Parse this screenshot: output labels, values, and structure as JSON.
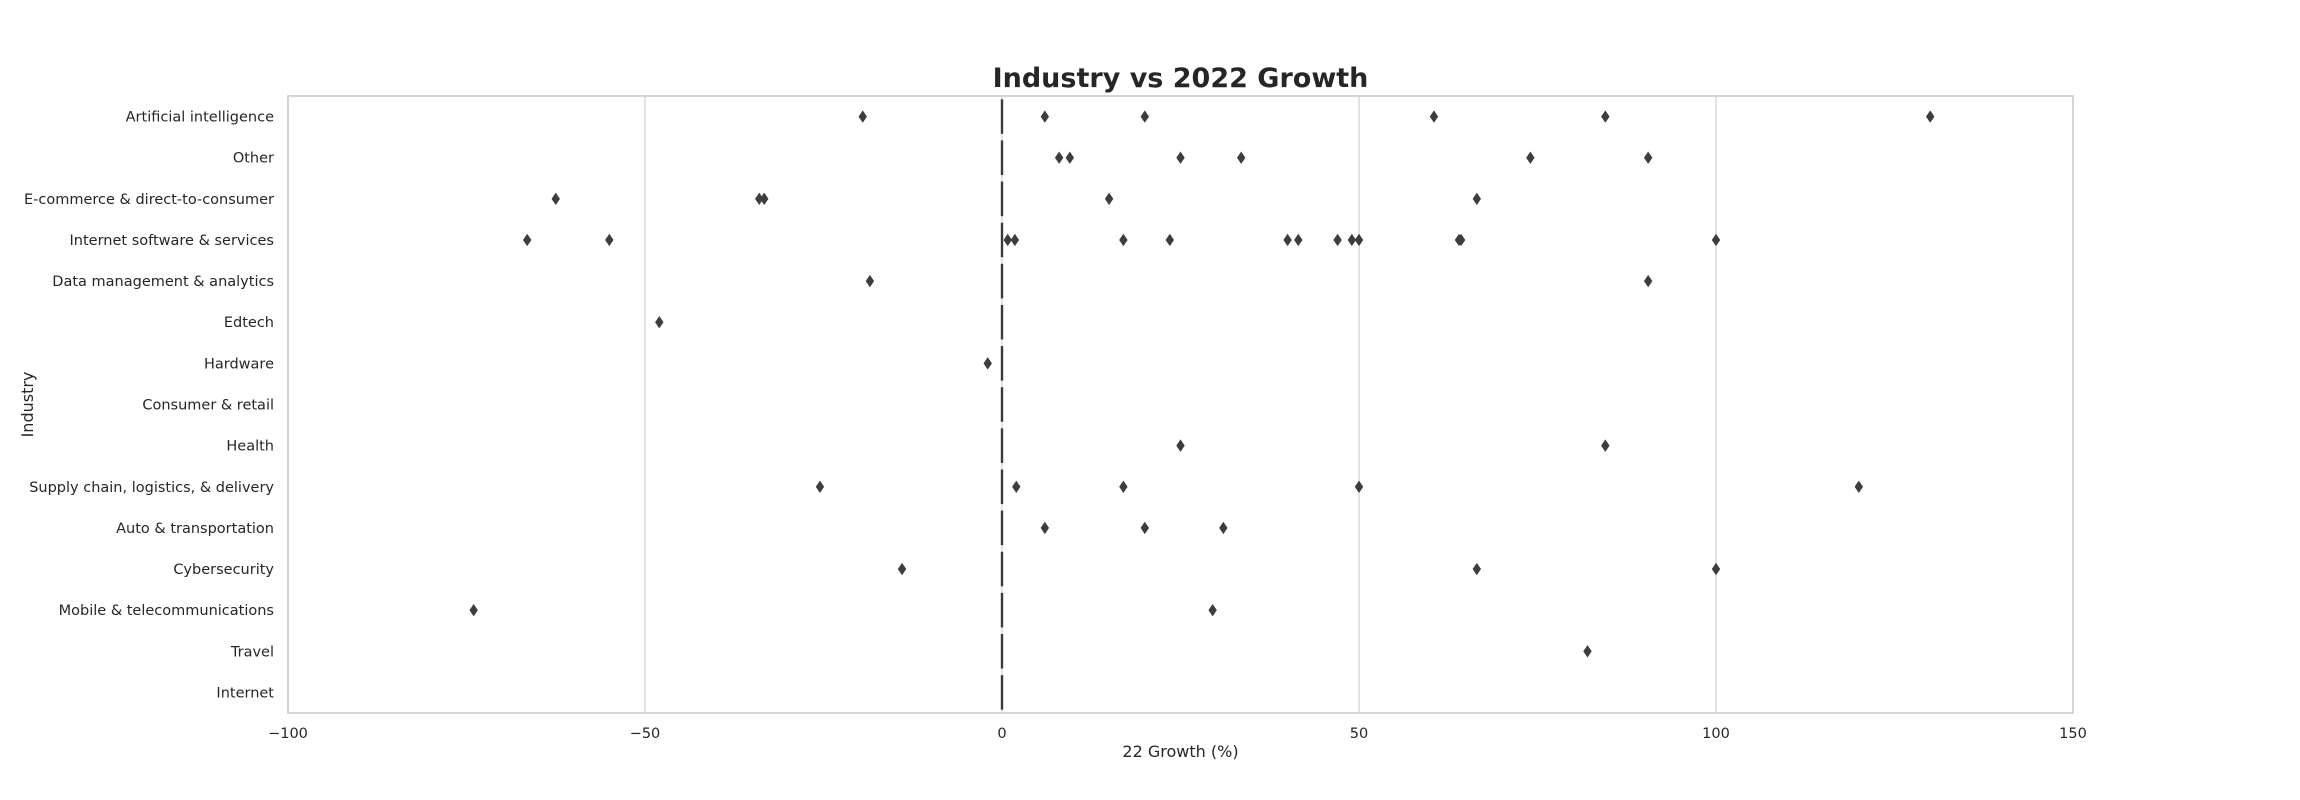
{
  "chart_data": {
    "type": "scatter",
    "title": "Industry vs 2022 Growth",
    "xlabel": "22 Growth (%)",
    "ylabel": "Industry",
    "xlim": [
      -100,
      150
    ],
    "xticks": [
      -100,
      -50,
      0,
      50,
      100,
      150
    ],
    "xtick_labels": [
      "−100",
      "−50",
      "0",
      "50",
      "100",
      "150"
    ],
    "grid": "vertical",
    "categories": [
      "Artificial intelligence",
      "Other",
      "E-commerce & direct-to-consumer",
      "Internet software & services",
      "Data management & analytics",
      "Edtech",
      "Hardware",
      "Consumer & retail",
      "Health",
      "Supply chain, logistics, & delivery",
      "Auto & transportation",
      "Cybersecurity",
      "Mobile & telecommunications",
      "Travel",
      "Internet"
    ],
    "median_values": [
      0,
      0,
      0,
      0,
      0,
      0,
      0,
      0,
      0,
      0,
      0,
      0,
      0,
      0,
      0
    ],
    "outliers": [
      [
        -19.5,
        6,
        20,
        60.5,
        84.5,
        130
      ],
      [
        8,
        9.5,
        25,
        33.5,
        74,
        90.5
      ],
      [
        -62.5,
        -34,
        -33.3,
        15,
        66.5
      ],
      [
        -66.5,
        -55,
        0.8,
        1.8,
        17,
        23.5,
        40,
        41.5,
        47,
        49,
        50,
        64,
        64.3,
        100
      ],
      [
        -18.5,
        90.5
      ],
      [
        -48
      ],
      [
        -2
      ],
      [],
      [
        25,
        84.5
      ],
      [
        -25.5,
        2,
        17,
        50,
        120
      ],
      [
        6,
        20,
        31
      ],
      [
        -14,
        66.5,
        100
      ],
      [
        -74,
        29.5
      ],
      [
        82
      ],
      []
    ]
  }
}
